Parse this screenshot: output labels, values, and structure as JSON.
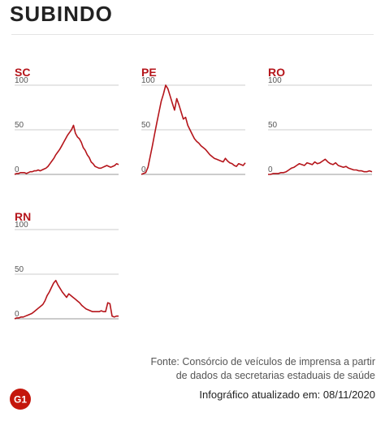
{
  "header": {
    "title": "SUBINDO"
  },
  "colors": {
    "line": "#b5151b",
    "label": "#b5151b",
    "axis_text": "#555555",
    "grid": "#cccccc"
  },
  "logo": {
    "icon": "g1-logo-icon",
    "text": "G1"
  },
  "footer": {
    "source_line1": "Fonte: Consórcio de veículos de imprensa a partir",
    "source_line2": "de dados da secretarias estaduais de saúde",
    "updated": "Infográfico atualizado em: 08/11/2020"
  },
  "chart_data": [
    {
      "type": "line",
      "title": "SC",
      "ylim": [
        0,
        100
      ],
      "yticks": [
        0,
        50,
        100
      ],
      "series": [
        {
          "values": [
            0,
            1,
            1,
            2,
            2,
            2,
            1,
            2,
            3,
            3,
            4,
            4,
            5,
            4,
            5,
            6,
            7,
            9,
            12,
            15,
            18,
            22,
            25,
            28,
            32,
            36,
            40,
            44,
            47,
            50,
            55,
            46,
            42,
            40,
            36,
            30,
            27,
            22,
            19,
            14,
            12,
            9,
            8,
            7,
            7,
            8,
            9,
            10,
            9,
            8,
            9,
            10,
            12,
            11
          ]
        }
      ]
    },
    {
      "type": "line",
      "title": "PE",
      "ylim": [
        0,
        100
      ],
      "yticks": [
        0,
        50,
        100
      ],
      "series": [
        {
          "values": [
            0,
            1,
            2,
            8,
            20,
            32,
            45,
            58,
            70,
            82,
            90,
            100,
            96,
            88,
            80,
            72,
            85,
            78,
            70,
            62,
            64,
            55,
            50,
            45,
            40,
            37,
            35,
            32,
            30,
            28,
            25,
            22,
            20,
            18,
            17,
            16,
            15,
            14,
            18,
            15,
            13,
            12,
            10,
            9,
            12,
            11,
            10,
            13
          ]
        }
      ]
    },
    {
      "type": "line",
      "title": "RO",
      "ylim": [
        0,
        100
      ],
      "yticks": [
        0,
        50,
        100
      ],
      "series": [
        {
          "values": [
            0,
            0,
            1,
            1,
            1,
            2,
            2,
            3,
            5,
            7,
            8,
            10,
            12,
            11,
            10,
            13,
            12,
            11,
            14,
            12,
            13,
            15,
            17,
            14,
            12,
            11,
            13,
            10,
            9,
            8,
            9,
            7,
            6,
            5,
            5,
            4,
            4,
            3,
            3,
            4,
            3
          ]
        }
      ]
    },
    {
      "type": "line",
      "title": "RN",
      "ylim": [
        0,
        100
      ],
      "yticks": [
        0,
        50,
        100
      ],
      "series": [
        {
          "values": [
            0,
            1,
            1,
            2,
            2,
            3,
            4,
            5,
            6,
            8,
            10,
            12,
            14,
            16,
            20,
            26,
            30,
            35,
            40,
            43,
            38,
            34,
            30,
            27,
            24,
            28,
            26,
            24,
            22,
            20,
            18,
            15,
            13,
            11,
            10,
            9,
            8,
            8,
            8,
            8,
            9,
            8,
            8,
            18,
            17,
            3,
            2,
            3,
            3
          ]
        }
      ]
    }
  ]
}
